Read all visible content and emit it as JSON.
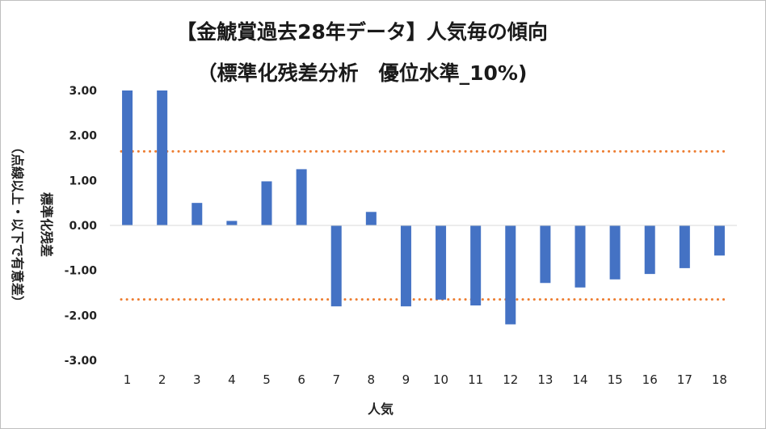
{
  "chart_data": {
    "type": "bar",
    "title": "【金鯱賞過去28年データ】人気毎の傾向",
    "subtitle": "（標準化残差分析　優位水準_10%)",
    "xlabel": "人気",
    "ylabel": "標準化残差",
    "ylabel_sub": "（点線以上・以下で有意差）",
    "categories": [
      "1",
      "2",
      "3",
      "4",
      "5",
      "6",
      "7",
      "8",
      "9",
      "10",
      "11",
      "12",
      "13",
      "14",
      "15",
      "16",
      "17",
      "18"
    ],
    "values": [
      3.0,
      3.0,
      0.5,
      0.1,
      0.98,
      1.25,
      -1.8,
      0.3,
      -1.8,
      -1.65,
      -1.78,
      -2.2,
      -1.28,
      -1.38,
      -1.2,
      -1.08,
      -0.95,
      -0.67
    ],
    "ylim": [
      -3.0,
      3.0
    ],
    "yticks": [
      "3.00",
      "2.00",
      "1.00",
      "0.00",
      "-1.00",
      "-2.00",
      "-3.00"
    ],
    "threshold_lines": [
      1.645,
      -1.645
    ],
    "bar_color": "#4472c4",
    "threshold_color": "#ed7d31",
    "grid": false
  }
}
